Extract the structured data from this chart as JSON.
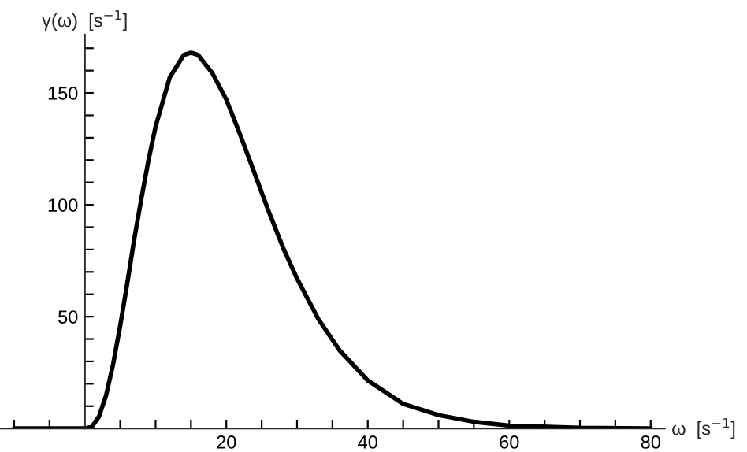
{
  "chart_data": {
    "type": "line",
    "xlabel": "ω  [s$^{−1}$]",
    "ylabel": "γ(ω)  [s$^{−1}$]",
    "x": [
      -10,
      -5,
      0,
      1,
      2,
      3,
      4,
      5,
      6,
      7,
      8,
      9,
      10,
      12,
      14,
      15,
      16,
      18,
      20,
      22,
      24,
      26,
      28,
      30,
      33,
      36,
      40,
      45,
      50,
      55,
      60,
      70,
      80
    ],
    "series": [
      {
        "color": "#000000",
        "values": [
          0,
          0,
          0,
          0.8,
          5.4,
          14.8,
          28.8,
          46,
          65,
          85,
          103,
          120,
          135,
          157,
          167,
          168,
          167,
          159,
          147,
          131,
          114,
          97,
          81,
          67,
          49,
          35,
          21.5,
          11,
          6,
          3,
          1.3,
          0.3,
          0
        ]
      }
    ],
    "xlim": [
      -12,
      82
    ],
    "ylim": [
      0,
      176
    ],
    "xticks": [
      {
        "value": -10,
        "label": null
      },
      {
        "value": -5,
        "label": null
      },
      {
        "value": 5,
        "label": null
      },
      {
        "value": 10,
        "label": null
      },
      {
        "value": 15,
        "label": null
      },
      20,
      {
        "value": 25,
        "label": null
      },
      {
        "value": 30,
        "label": null
      },
      {
        "value": 35,
        "label": null
      },
      40,
      {
        "value": 45,
        "label": null
      },
      {
        "value": 50,
        "label": null
      },
      {
        "value": 55,
        "label": null
      },
      60,
      {
        "value": 65,
        "label": null
      },
      {
        "value": 70,
        "label": null
      },
      {
        "value": 75,
        "label": null
      },
      80
    ],
    "yticks": [
      {
        "value": 10,
        "label": null
      },
      {
        "value": 20,
        "label": null
      },
      {
        "value": 30,
        "label": null
      },
      {
        "value": 40,
        "label": null
      },
      50,
      {
        "value": 60,
        "label": null
      },
      {
        "value": 70,
        "label": null
      },
      {
        "value": 80,
        "label": null
      },
      {
        "value": 90,
        "label": null
      },
      100,
      {
        "value": 110,
        "label": null
      },
      {
        "value": 120,
        "label": null
      },
      {
        "value": 130,
        "label": null
      },
      {
        "value": 140,
        "label": null
      },
      150,
      {
        "value": 160,
        "label": null
      },
      {
        "value": 170,
        "label": null
      }
    ],
    "grid": false,
    "marker": "none",
    "line_style": "solid"
  }
}
